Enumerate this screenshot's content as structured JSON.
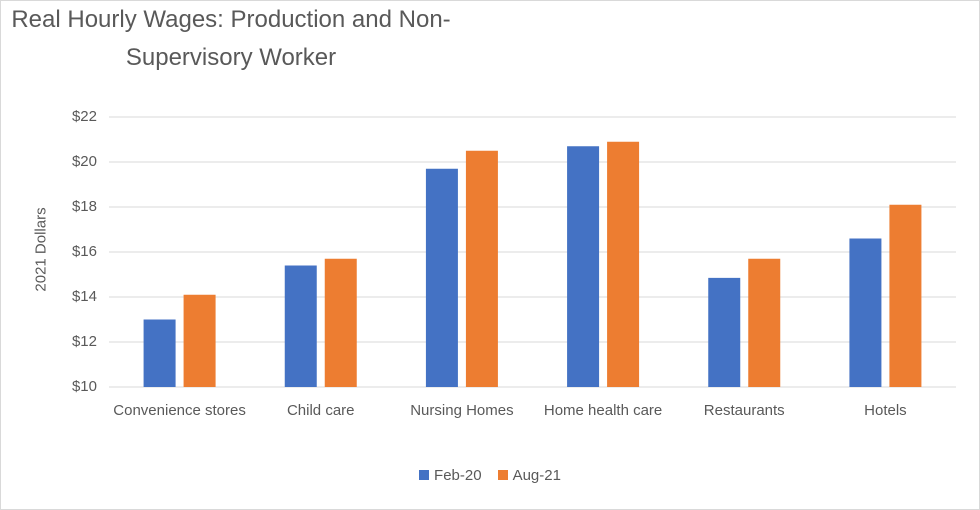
{
  "chart_data": {
    "type": "bar",
    "title": "Real Hourly Wages: Production and Non-Supervisory Worker",
    "y_label": "2021 Dollars",
    "categories": [
      "Convenience stores",
      "Child care",
      "Nursing Homes",
      "Home health care",
      "Restaurants",
      "Hotels"
    ],
    "series": [
      {
        "name": "Feb-20",
        "color": "#4472c4",
        "values": [
          13.0,
          15.4,
          19.7,
          20.7,
          14.85,
          16.6
        ]
      },
      {
        "name": "Aug-21",
        "color": "#ed7d31",
        "values": [
          14.1,
          15.7,
          20.5,
          20.9,
          15.7,
          18.1
        ]
      }
    ],
    "ylim": [
      10,
      22
    ],
    "yticks": [
      {
        "value": 10,
        "label": "$10"
      },
      {
        "value": 12,
        "label": "$12"
      },
      {
        "value": 14,
        "label": "$14"
      },
      {
        "value": 16,
        "label": "$16"
      },
      {
        "value": 18,
        "label": "$18"
      },
      {
        "value": 20,
        "label": "$20"
      },
      {
        "value": 22,
        "label": "$22"
      }
    ],
    "grid": true,
    "legend": "bottom"
  }
}
